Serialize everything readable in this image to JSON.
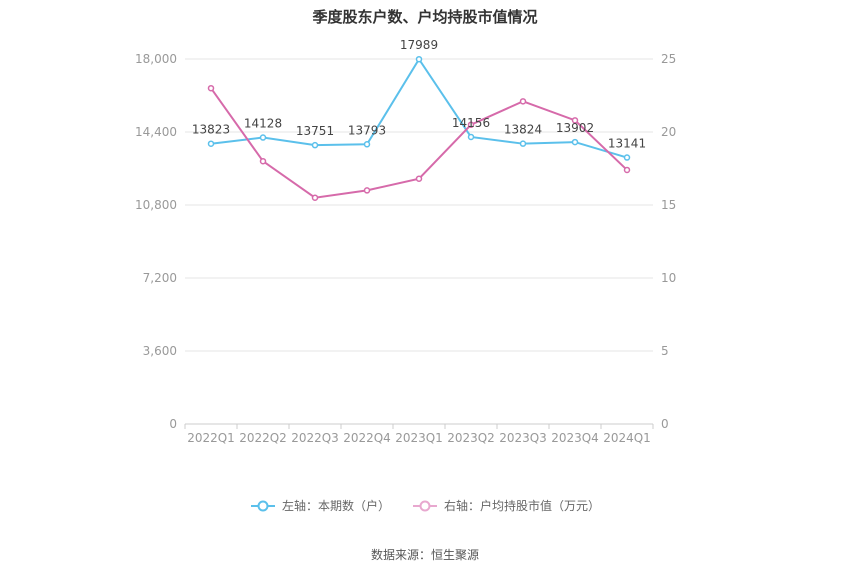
{
  "title": "季度股东户数、户均持股市值情况",
  "source": "数据来源：恒生聚源",
  "colors": {
    "left_series": "#5bc0eb",
    "right_series": "#d66aaa",
    "grid": "#e6e6e6",
    "axis_text": "#999999",
    "label_text": "#444444"
  },
  "chart_data": {
    "type": "line",
    "categories": [
      "2022Q1",
      "2022Q2",
      "2022Q3",
      "2022Q4",
      "2023Q1",
      "2023Q2",
      "2023Q3",
      "2023Q4",
      "2024Q1"
    ],
    "left_axis": {
      "min": 0,
      "max": 18000,
      "ticks": [
        0,
        3600,
        7200,
        10800,
        14400,
        18000
      ],
      "tick_labels": [
        "0",
        "3,600",
        "7,200",
        "10,800",
        "14,400",
        "18,000"
      ]
    },
    "right_axis": {
      "min": 0,
      "max": 25,
      "ticks": [
        0,
        5,
        10,
        15,
        20,
        25
      ],
      "tick_labels": [
        "0",
        "5",
        "10",
        "15",
        "20",
        "25"
      ]
    },
    "series": [
      {
        "name": "左轴：本期数（户）",
        "axis": "left",
        "values": [
          13823,
          14128,
          13751,
          13793,
          17989,
          14156,
          13824,
          13902,
          13141
        ],
        "labels": [
          "13823",
          "14128",
          "13751",
          "13793",
          "17989",
          "14156",
          "13824",
          "13902",
          "13141"
        ]
      },
      {
        "name": "右轴：户均持股市值（万元）",
        "axis": "right",
        "values": [
          23.0,
          18.0,
          15.5,
          16.0,
          16.8,
          20.5,
          22.1,
          20.8,
          17.4
        ]
      }
    ],
    "grid": true,
    "legend": "bottom-center"
  }
}
